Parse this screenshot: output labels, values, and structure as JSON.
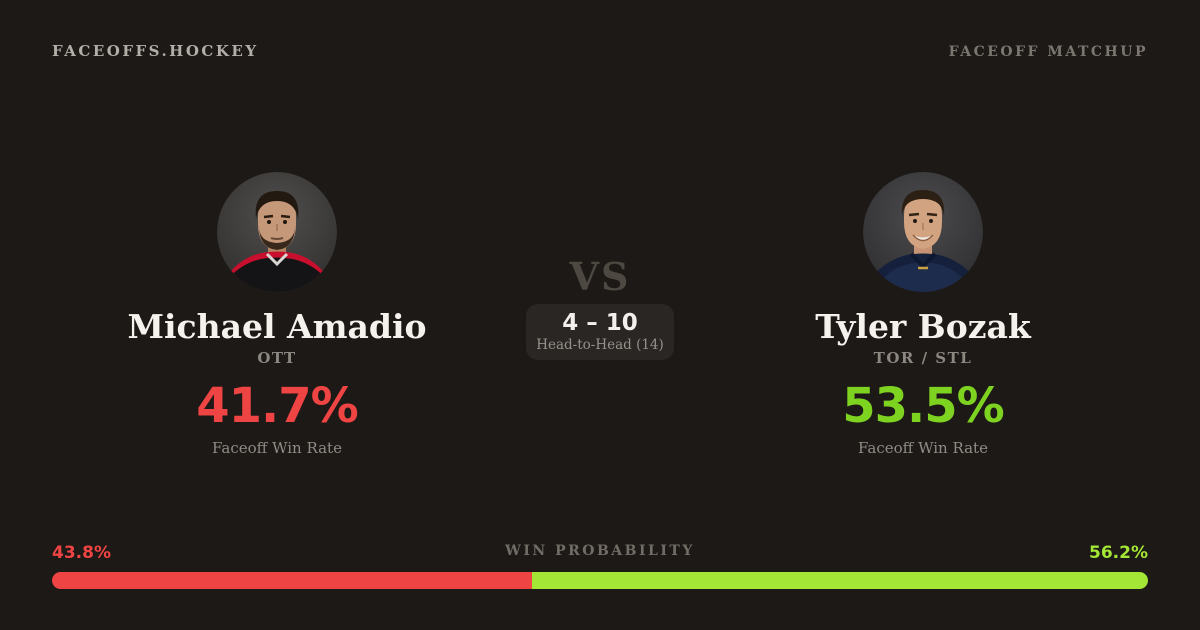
{
  "header": {
    "brand": "FACEOFFS.HOCKEY",
    "page_label": "FACEOFF MATCHUP"
  },
  "players": {
    "left": {
      "name": "Michael Amadio",
      "team": "OTT",
      "win_rate": "41.7%",
      "win_rate_color": "#ef4444",
      "stat_label": "Faceoff Win Rate",
      "photo": "amadio-headshot"
    },
    "right": {
      "name": "Tyler Bozak",
      "team": "TOR / STL",
      "win_rate": "53.5%",
      "win_rate_color": "#7ed321",
      "stat_label": "Faceoff Win Rate",
      "photo": "bozak-headshot"
    }
  },
  "matchup": {
    "vs_label": "VS",
    "head_to_head_score": "4 – 10",
    "head_to_head_label": "Head-to-Head (14)"
  },
  "win_probability": {
    "label": "WIN PROBABILITY",
    "left_value": "43.8%",
    "left_percent": 43.8,
    "left_color": "#ef4444",
    "right_value": "56.2%",
    "right_percent": 56.2,
    "right_color": "#a3e635"
  },
  "colors": {
    "background": "#1d1916",
    "box_background": "#2a2623"
  }
}
